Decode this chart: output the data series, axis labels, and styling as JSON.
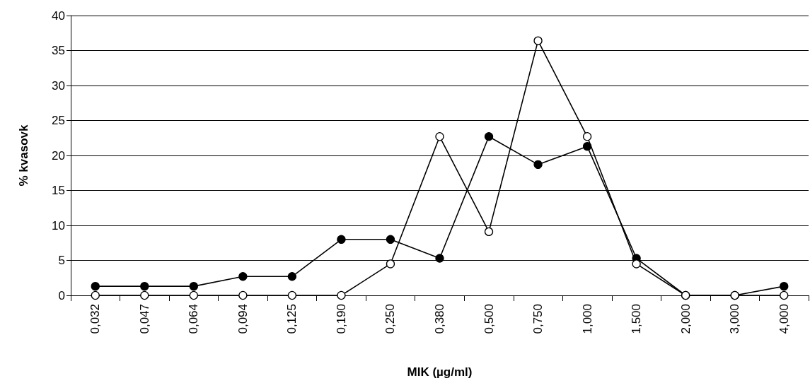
{
  "chart_data": {
    "type": "line",
    "xlabel": "MIK (µg/ml)",
    "ylabel": "% kvasovk",
    "categories": [
      "0,032",
      "0,047",
      "0,064",
      "0,094",
      "0,125",
      "0,190",
      "0,250",
      "0,380",
      "0,500",
      "0,750",
      "1,000",
      "1,500",
      "2,000",
      "3,000",
      "4,000"
    ],
    "series": [
      {
        "color": "#000000",
        "values": [
          1.3,
          1.3,
          1.3,
          2.7,
          2.7,
          8.0,
          8.0,
          5.3,
          22.7,
          18.7,
          21.3,
          5.3,
          0,
          0,
          1.3
        ]
      },
      {
        "color": "#000000",
        "values": [
          0,
          0,
          0,
          0,
          0,
          0,
          4.5,
          22.7,
          9.1,
          36.4,
          22.7,
          4.5,
          0,
          0,
          0
        ]
      }
    ],
    "ylim": [
      0,
      40
    ],
    "yticks": [
      0,
      5,
      10,
      15,
      20,
      25,
      30,
      35,
      40
    ],
    "grid": "y",
    "marker": "circle",
    "line_style": "solid"
  }
}
